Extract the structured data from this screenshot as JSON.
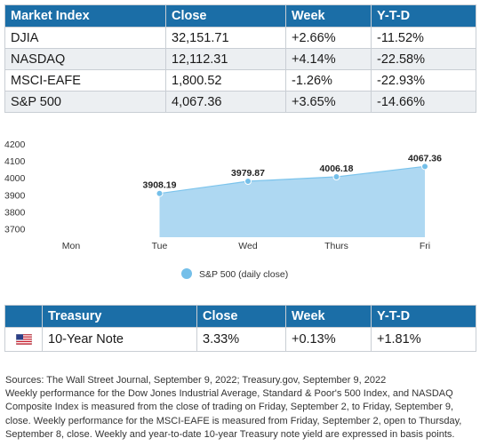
{
  "market_table": {
    "headers": [
      "Market Index",
      "Close",
      "Week",
      "Y-T-D"
    ],
    "rows": [
      [
        "DJIA",
        "32,151.71",
        "+2.66%",
        "-11.52%"
      ],
      [
        "NASDAQ",
        "12,112.31",
        "+4.14%",
        "-22.58%"
      ],
      [
        "MSCI-EAFE",
        "1,800.52",
        "-1.26%",
        "-22.93%"
      ],
      [
        "S&P 500",
        "4,067.36",
        "+3.65%",
        "-14.66%"
      ]
    ]
  },
  "chart_data": {
    "type": "area",
    "categories": [
      "Mon",
      "Tue",
      "Wed",
      "Thurs",
      "Fri"
    ],
    "series": [
      {
        "name": "S&P 500 (daily close)",
        "values": [
          null,
          3908.19,
          3979.87,
          4006.18,
          4067.36
        ],
        "labels": [
          "",
          "3908.19",
          "3979.87",
          "4006.18",
          "4067.36"
        ]
      }
    ],
    "yticks": [
      "4200",
      "4100",
      "4000",
      "3900",
      "3800",
      "3700"
    ],
    "ylim": [
      3650,
      4200
    ],
    "grid": false,
    "legend": "bottom",
    "colors": {
      "area": "#aed8f2",
      "line": "#7cc4ec",
      "marker": "#74bfe9"
    }
  },
  "treasury_table": {
    "headers": [
      "",
      "Treasury",
      "Close",
      "Week",
      "Y-T-D"
    ],
    "rows": [
      {
        "flag": "us-flag-icon",
        "name": "10-Year Note",
        "close": "3.33%",
        "week": "+0.13%",
        "ytd": "+1.81%"
      }
    ]
  },
  "footnote": {
    "sources": "Sources: The Wall Street Journal, September 9, 2022; Treasury.gov, September 9, 2022",
    "text": "Weekly performance for the Dow Jones Industrial Average, Standard & Poor's 500 Index, and NASDAQ Composite Index is measured from the close of trading on Friday, September 2, to Friday, September 9, close. Weekly performance for the MSCI-EAFE is measured from Friday, September 2, open to Thursday, September 8, close. Weekly and year-to-date 10-year Treasury note yield are expressed in basis points."
  }
}
